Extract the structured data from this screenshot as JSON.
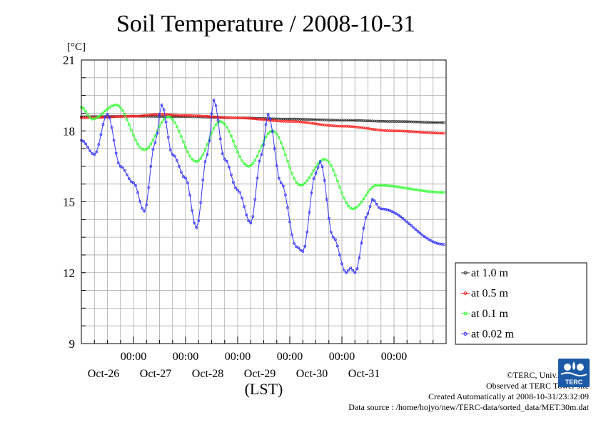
{
  "chart_data": {
    "type": "line",
    "title": "Soil Temperature / 2008-10-31",
    "ylabel": "[°C]",
    "xlabel": "(LST)",
    "ylim": [
      9,
      21
    ],
    "yticks": [
      9,
      12,
      15,
      18,
      21
    ],
    "xlim": [
      "2008-10-25T00:00",
      "2008-11-01T00:00"
    ],
    "xtick_time_label": "00:00",
    "xtick_dates": [
      "Oct-26",
      "Oct-27",
      "Oct-28",
      "Oct-29",
      "Oct-30",
      "Oct-31"
    ],
    "grid": true,
    "legend_position": "right",
    "series": [
      {
        "name": "at 1.0 m",
        "color": "#333333",
        "points": [
          [
            "2008-10-25T00:00",
            18.6
          ],
          [
            "2008-10-26T00:00",
            18.62
          ],
          [
            "2008-10-27T00:00",
            18.6
          ],
          [
            "2008-10-28T00:00",
            18.55
          ],
          [
            "2008-10-29T00:00",
            18.5
          ],
          [
            "2008-10-30T00:00",
            18.45
          ],
          [
            "2008-10-31T00:00",
            18.4
          ],
          [
            "2008-10-31T23:00",
            18.35
          ]
        ]
      },
      {
        "name": "at 0.5 m",
        "color": "#ff2020",
        "points": [
          [
            "2008-10-25T00:00",
            18.55
          ],
          [
            "2008-10-26T00:00",
            18.62
          ],
          [
            "2008-10-26T12:00",
            18.7
          ],
          [
            "2008-10-27T00:00",
            18.65
          ],
          [
            "2008-10-28T00:00",
            18.55
          ],
          [
            "2008-10-29T00:00",
            18.4
          ],
          [
            "2008-10-30T00:00",
            18.2
          ],
          [
            "2008-10-31T00:00",
            18.0
          ],
          [
            "2008-10-31T23:00",
            17.9
          ]
        ]
      },
      {
        "name": "at 0.1 m",
        "color": "#33ff33",
        "points": [
          [
            "2008-10-25T00:00",
            19.0
          ],
          [
            "2008-10-25T05:00",
            18.5
          ],
          [
            "2008-10-25T16:00",
            19.1
          ],
          [
            "2008-10-26T05:00",
            17.2
          ],
          [
            "2008-10-26T16:00",
            18.6
          ],
          [
            "2008-10-27T05:00",
            16.7
          ],
          [
            "2008-10-27T16:00",
            18.4
          ],
          [
            "2008-10-28T05:00",
            16.5
          ],
          [
            "2008-10-28T16:00",
            18.0
          ],
          [
            "2008-10-29T05:00",
            15.7
          ],
          [
            "2008-10-29T16:00",
            16.8
          ],
          [
            "2008-10-30T05:00",
            14.7
          ],
          [
            "2008-10-30T16:00",
            15.7
          ],
          [
            "2008-10-31T23:00",
            15.4
          ]
        ]
      },
      {
        "name": "at 0.02 m",
        "color": "#3333ff",
        "points": [
          [
            "2008-10-25T00:00",
            17.6
          ],
          [
            "2008-10-25T06:00",
            17.0
          ],
          [
            "2008-10-25T12:00",
            18.7
          ],
          [
            "2008-10-25T18:00",
            16.5
          ],
          [
            "2008-10-26T00:00",
            15.8
          ],
          [
            "2008-10-26T05:00",
            14.6
          ],
          [
            "2008-10-26T10:00",
            17.5
          ],
          [
            "2008-10-26T13:00",
            19.1
          ],
          [
            "2008-10-26T18:00",
            17.0
          ],
          [
            "2008-10-27T00:00",
            16.0
          ],
          [
            "2008-10-27T05:00",
            13.9
          ],
          [
            "2008-10-27T10:00",
            17.0
          ],
          [
            "2008-10-27T13:00",
            19.3
          ],
          [
            "2008-10-27T18:00",
            16.8
          ],
          [
            "2008-10-28T00:00",
            15.5
          ],
          [
            "2008-10-28T06:00",
            14.1
          ],
          [
            "2008-10-28T11:00",
            17.0
          ],
          [
            "2008-10-28T14:00",
            18.7
          ],
          [
            "2008-10-28T20:00",
            15.8
          ],
          [
            "2008-10-29T03:00",
            13.1
          ],
          [
            "2008-10-29T06:00",
            12.9
          ],
          [
            "2008-10-29T12:00",
            16.2
          ],
          [
            "2008-10-29T14:00",
            16.7
          ],
          [
            "2008-10-29T20:00",
            13.5
          ],
          [
            "2008-10-30T02:00",
            12.0
          ],
          [
            "2008-10-30T04:00",
            12.2
          ],
          [
            "2008-10-30T06:00",
            12.0
          ],
          [
            "2008-10-30T12:00",
            14.5
          ],
          [
            "2008-10-30T14:00",
            15.1
          ],
          [
            "2008-10-30T18:00",
            14.7
          ],
          [
            "2008-10-31T23:00",
            13.2
          ]
        ]
      }
    ]
  },
  "footer": {
    "copyright": "©TERC, Univ. Tsukuba",
    "observed": "Observed at TERC Tower site",
    "created": "Created Automatically at 2008-10-31/23:32:09",
    "source": "Data source : /home/hojyo/new/TERC-data/sorted_data/MET.30m.dat"
  },
  "logo_text": "TERC"
}
